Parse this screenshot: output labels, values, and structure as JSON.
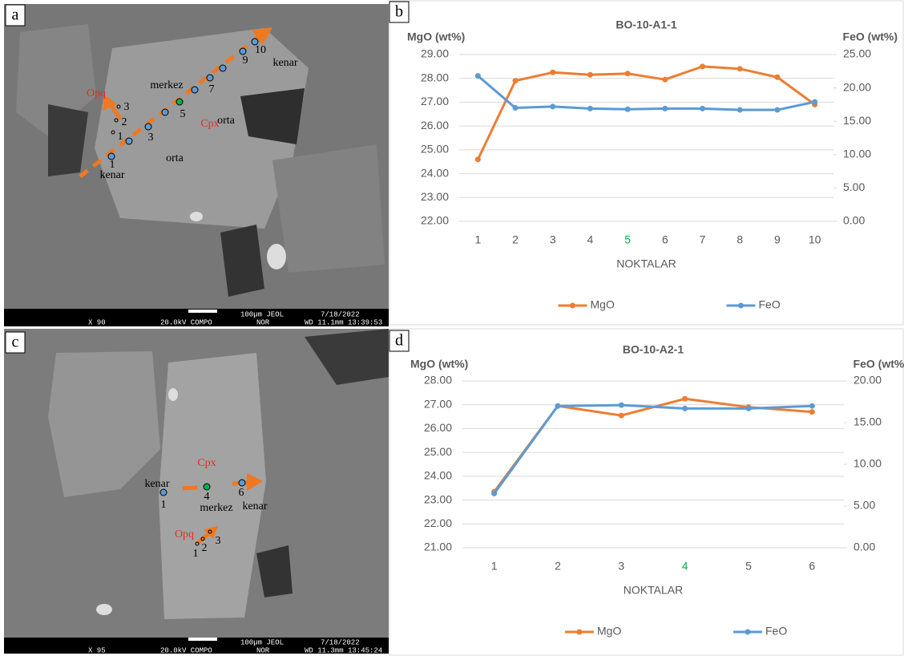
{
  "images": [
    {
      "label": "a",
      "annotations": [
        "Opq",
        "3",
        "2",
        "1",
        "3",
        "1",
        "kenar",
        "merkez",
        "5",
        "Cpx",
        "orta",
        "7",
        "orta",
        "9",
        "10",
        "kenar"
      ],
      "footer": [
        "100µm JEOL",
        "7/18/2022",
        "X 90",
        "20.0kV COMPO",
        "NOR",
        "WD 11.1mm 13:39:53"
      ]
    },
    {
      "label": "c",
      "annotations": [
        "Cpx",
        "kenar",
        "1",
        "4",
        "merkez",
        "6",
        "kenar",
        "Opq",
        "1",
        "2",
        "3"
      ],
      "footer": [
        "100µm JEOL",
        "7/18/2022",
        "X 95",
        "20.0kV COMPO",
        "NOR",
        "WD 11.3mm 13:45:24"
      ]
    }
  ],
  "chart_data": [
    {
      "type": "line",
      "label": "b",
      "title": "BO-10-A1-1",
      "y_label": "MgO (wt%)",
      "y2_label": "FeO (wt%)",
      "x_label": "NOKTALAR",
      "categories": [
        1,
        2,
        3,
        4,
        5,
        6,
        7,
        8,
        9,
        10
      ],
      "highlight": {
        "index": 4,
        "color": "#00b050"
      },
      "series": [
        {
          "name": "MgO",
          "color": "#ed7d31",
          "values": [
            24.6,
            27.9,
            28.25,
            28.15,
            28.2,
            27.95,
            28.5,
            28.4,
            28.05,
            26.9
          ]
        },
        {
          "name": "FeO",
          "color": "#5b9bd5",
          "axis": "y2",
          "values": [
            21.8,
            17.0,
            17.2,
            16.9,
            16.8,
            16.9,
            16.9,
            16.7,
            16.7,
            17.9
          ]
        }
      ],
      "ylim": [
        22,
        29
      ],
      "yticks": [
        {
          "value": 22,
          "label": "22.00"
        },
        {
          "value": 23,
          "label": "23.00"
        },
        {
          "value": 24,
          "label": "24.00"
        },
        {
          "value": 25,
          "label": "25.00"
        },
        {
          "value": 26,
          "label": "26.00"
        },
        {
          "value": 27,
          "label": "27.00"
        },
        {
          "value": 28,
          "label": "28.00"
        },
        {
          "value": 29,
          "label": "29.00"
        }
      ],
      "y2lim": [
        0,
        25
      ],
      "y2ticks": [
        {
          "value": 0,
          "label": "0.00"
        },
        {
          "value": 5,
          "label": "5.00"
        },
        {
          "value": 10,
          "label": "10.00"
        },
        {
          "value": 15,
          "label": "15.00"
        },
        {
          "value": 20,
          "label": "20.00"
        },
        {
          "value": 25,
          "label": "25.00"
        }
      ],
      "grid": true,
      "legend": "bottom"
    },
    {
      "type": "line",
      "label": "d",
      "title": "BO-10-A2-1",
      "y_label": "MgO (wt%)",
      "y2_label": "FeO (wt%)",
      "x_label": "NOKTALAR",
      "categories": [
        1,
        2,
        3,
        4,
        5,
        6
      ],
      "highlight": {
        "index": 3,
        "color": "#00b050"
      },
      "series": [
        {
          "name": "MgO",
          "color": "#ed7d31",
          "values": [
            23.35,
            26.95,
            26.55,
            27.25,
            26.9,
            26.7
          ]
        },
        {
          "name": "FeO",
          "color": "#5b9bd5",
          "axis": "y2",
          "values": [
            6.5,
            17.0,
            17.1,
            16.7,
            16.7,
            17.0
          ]
        }
      ],
      "ylim": [
        21,
        28
      ],
      "yticks": [
        {
          "value": 21,
          "label": "21.00"
        },
        {
          "value": 22,
          "label": "22.00"
        },
        {
          "value": 23,
          "label": "23.00"
        },
        {
          "value": 24,
          "label": "24.00"
        },
        {
          "value": 25,
          "label": "25.00"
        },
        {
          "value": 26,
          "label": "26.00"
        },
        {
          "value": 27,
          "label": "27.00"
        },
        {
          "value": 28,
          "label": "28.00"
        }
      ],
      "y2lim": [
        0,
        20
      ],
      "y2ticks": [
        {
          "value": 0,
          "label": "0.00"
        },
        {
          "value": 5,
          "label": "5.00"
        },
        {
          "value": 10,
          "label": "10.00"
        },
        {
          "value": 15,
          "label": "15.00"
        },
        {
          "value": 20,
          "label": "20.00"
        }
      ],
      "grid": true,
      "legend": "bottom"
    }
  ]
}
